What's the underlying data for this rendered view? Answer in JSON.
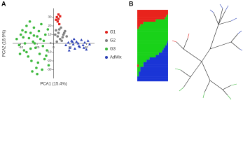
{
  "chart_data": [
    {
      "type": "scatter",
      "panel_label": "A",
      "xlabel": "PCA1 (15.4%)",
      "ylabel": "PCA2 (18.9%)",
      "xlim": [
        -50,
        50
      ],
      "ylim": [
        -40,
        40
      ],
      "xticks": [
        -40,
        -20,
        0,
        20,
        40
      ],
      "yticks": [
        -30,
        -20,
        -10,
        0,
        10,
        20,
        30
      ],
      "series": [
        {
          "name": "G1",
          "color": "#e0201b",
          "marker": "square",
          "x": [
            4,
            6,
            5,
            7,
            3,
            6,
            8
          ],
          "y": [
            30,
            28,
            25,
            22,
            27,
            33,
            31
          ]
        },
        {
          "name": "G2",
          "color": "#808080",
          "marker": "circle",
          "x": [
            3,
            6,
            9,
            12,
            5,
            8,
            14,
            10,
            2,
            7,
            11,
            4,
            13,
            16
          ],
          "y": [
            15,
            12,
            18,
            10,
            8,
            5,
            14,
            3,
            10,
            16,
            7,
            2,
            12,
            8
          ]
        },
        {
          "name": "G3",
          "color": "#3cb83c",
          "marker": "circle",
          "x": [
            -45,
            -42,
            -40,
            -38,
            -36,
            -35,
            -33,
            -31,
            -30,
            -28,
            -27,
            -25,
            -24,
            -22,
            -21,
            -20,
            -18,
            -17,
            -15,
            -14,
            -12,
            -11,
            -10,
            -8,
            -7,
            -6,
            -33,
            -29,
            -26,
            -23,
            -19,
            -16,
            -13,
            -9,
            -37,
            -41,
            -34,
            -28,
            -24,
            -20
          ],
          "y": [
            5,
            -2,
            10,
            15,
            -8,
            0,
            20,
            -15,
            6,
            12,
            -20,
            2,
            18,
            -5,
            -28,
            8,
            14,
            -12,
            22,
            -30,
            3,
            -18,
            10,
            -8,
            16,
            -25,
            -10,
            25,
            -32,
            0,
            -22,
            5,
            -3,
            -14,
            7,
            -12,
            13,
            -6,
            9,
            -35
          ]
        },
        {
          "name": "AdMix",
          "color": "#2a3fb5",
          "marker": "triangle",
          "x": [
            15,
            18,
            20,
            22,
            24,
            26,
            28,
            30,
            32,
            34,
            36,
            38,
            40,
            42,
            44,
            19,
            25,
            31,
            37,
            23
          ],
          "y": [
            -2,
            1,
            -5,
            3,
            -1,
            -6,
            2,
            0,
            -4,
            4,
            -2,
            1,
            -7,
            3,
            -1,
            -8,
            5,
            -3,
            -5,
            2
          ]
        },
        {
          "name": "",
          "color": "#000",
          "x": [],
          "y": []
        }
      ]
    },
    {
      "type": "stacked-barh",
      "panel_label": "B",
      "xlim": [
        0,
        1
      ],
      "n": 30,
      "series": [
        {
          "color": "#e8231c",
          "values": [
            1,
            1,
            0.95,
            0.9,
            0.6,
            0.2,
            0.1,
            0.05,
            0,
            0,
            0,
            0,
            0,
            0,
            0,
            0,
            0,
            0,
            0,
            0,
            0,
            0,
            0,
            0.05,
            0,
            0,
            0,
            0,
            0,
            0
          ]
        },
        {
          "color": "#19d219",
          "values": [
            0,
            0,
            0.05,
            0.1,
            0.4,
            0.8,
            0.9,
            0.95,
            1,
            1,
            1,
            1,
            1,
            0.98,
            0.95,
            0.9,
            0.85,
            0.8,
            0.7,
            0.6,
            0.4,
            0.3,
            0.2,
            0.15,
            0.1,
            0.1,
            0.05,
            0.05,
            0,
            0
          ]
        },
        {
          "color": "#1a35d6",
          "values": [
            0,
            0,
            0,
            0,
            0,
            0,
            0,
            0,
            0,
            0,
            0,
            0,
            0,
            0.02,
            0.05,
            0.1,
            0.15,
            0.2,
            0.3,
            0.4,
            0.6,
            0.7,
            0.8,
            0.8,
            0.9,
            0.9,
            0.95,
            0.95,
            1,
            1
          ]
        }
      ]
    }
  ]
}
